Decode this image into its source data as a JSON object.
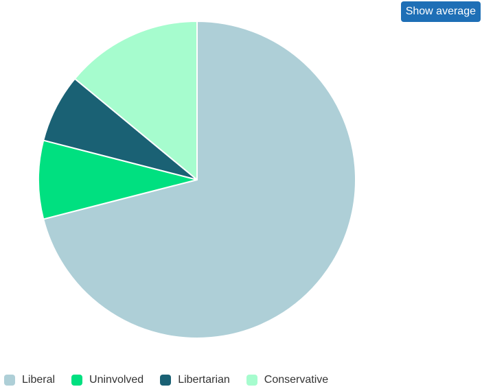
{
  "controls": {
    "show_average_label": "Show average"
  },
  "chart_data": {
    "type": "pie",
    "categories": [
      "Liberal",
      "Uninvolved",
      "Libertarian",
      "Conservative"
    ],
    "values": [
      71,
      8,
      7,
      14
    ],
    "colors": [
      "#aecfd7",
      "#00e080",
      "#1a6174",
      "#a6fcce"
    ],
    "legend_position": "bottom-left"
  }
}
